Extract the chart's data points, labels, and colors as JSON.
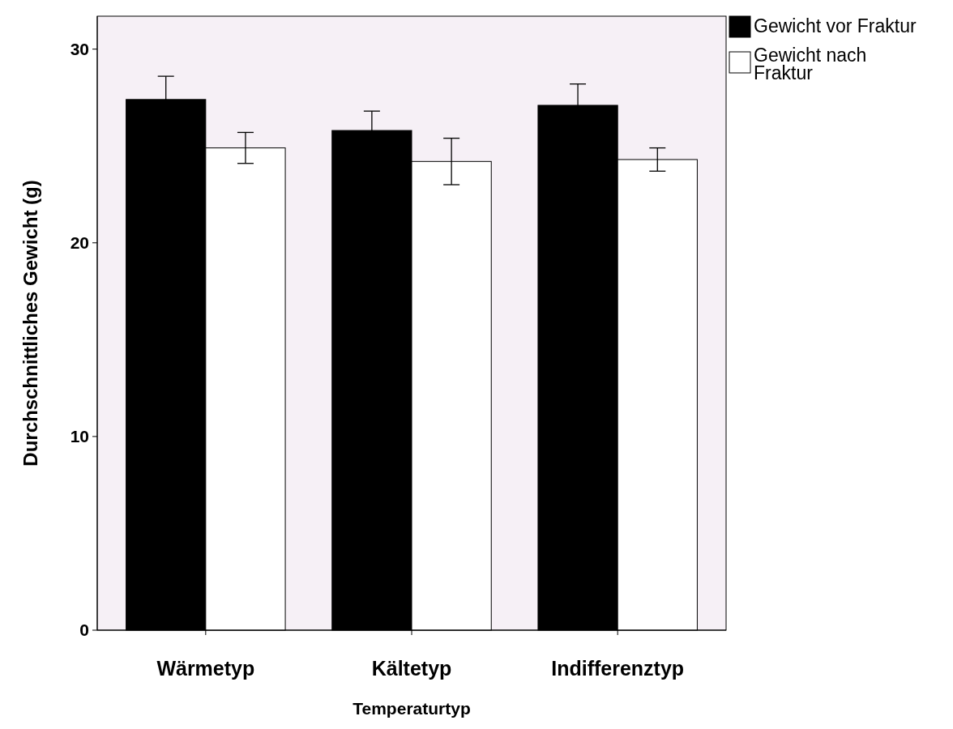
{
  "chart_data": {
    "type": "bar",
    "xlabel": "Temperaturtyp",
    "ylabel": "Durchschnittliches Gewicht (g)",
    "categories": [
      "Wärmetyp",
      "Kältetyp",
      "Indifferenztyp"
    ],
    "series": [
      {
        "name": "Gewicht vor Fraktur",
        "color": "#000000",
        "values": [
          27.4,
          25.8,
          27.1
        ],
        "errors": [
          1.2,
          1.0,
          1.1
        ]
      },
      {
        "name": "Gewicht nach Fraktur",
        "color": "#ffffff",
        "values": [
          24.9,
          24.2,
          24.3
        ],
        "errors": [
          0.8,
          1.2,
          0.6
        ]
      }
    ],
    "ylim": [
      0,
      31.7
    ],
    "yticks": [
      0,
      10,
      20,
      30
    ],
    "grid": false,
    "legend": "right"
  }
}
